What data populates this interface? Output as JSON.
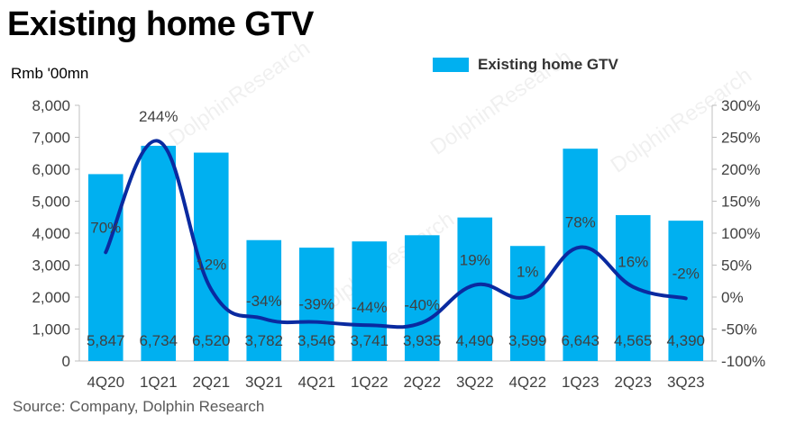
{
  "title": "Existing home GTV",
  "unit_label": "Rmb '00mn",
  "source": "Source: Company, Dolphin Research",
  "watermark": "DolphinResearch",
  "colors": {
    "bar": "#00b0f0",
    "line": "#0a2aa0",
    "axis_text": "#404040",
    "axis_line": "#bfbfbf"
  },
  "chart_data": {
    "type": "bar",
    "title": "Existing home GTV",
    "categories": [
      "4Q20",
      "1Q21",
      "2Q21",
      "3Q21",
      "4Q21",
      "1Q22",
      "2Q22",
      "3Q22",
      "4Q22",
      "1Q23",
      "2Q23",
      "3Q23"
    ],
    "series": [
      {
        "name": "Existing home GTV",
        "type": "bar",
        "axis": "left",
        "values": [
          5847,
          6734,
          6520,
          3782,
          3546,
          3741,
          3935,
          4490,
          3599,
          6643,
          4565,
          4390
        ],
        "labels": [
          "5,847",
          "6,734",
          "6,520",
          "3,782",
          "3,546",
          "3,741",
          "3,935",
          "4,490",
          "3,599",
          "6,643",
          "4,565",
          "4,390"
        ]
      },
      {
        "type": "line",
        "axis": "right",
        "values": [
          70,
          244,
          12,
          -34,
          -39,
          -44,
          -40,
          19,
          1,
          78,
          16,
          -2
        ],
        "labels": [
          "70%",
          "244%",
          "12%",
          "-34%",
          "-39%",
          "-44%",
          "-40%",
          "19%",
          "1%",
          "78%",
          "16%",
          "-2%"
        ]
      }
    ],
    "y_left": {
      "min": 0,
      "max": 8000,
      "ticks": [
        "0",
        "1,000",
        "2,000",
        "3,000",
        "4,000",
        "5,000",
        "6,000",
        "7,000",
        "8,000"
      ]
    },
    "y_right": {
      "min": -100,
      "max": 300,
      "ticks": [
        "-100%",
        "-50%",
        "0%",
        "50%",
        "100%",
        "150%",
        "200%",
        "250%",
        "300%"
      ]
    },
    "grid": false,
    "legend_position": "top-right"
  }
}
